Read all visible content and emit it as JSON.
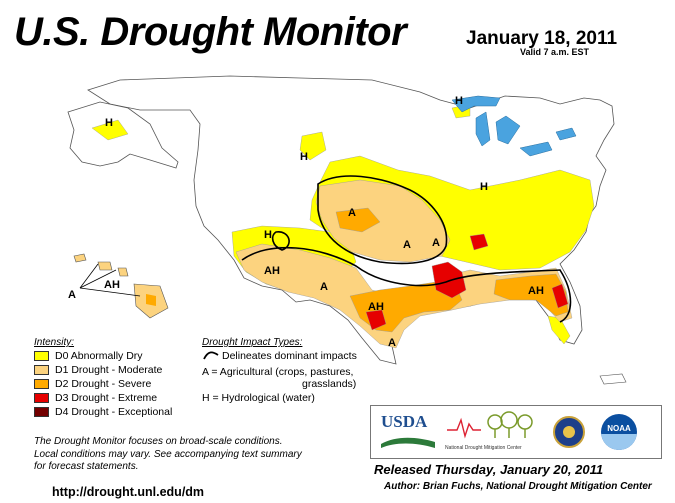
{
  "header": {
    "title": "U.S. Drought Monitor",
    "date": "January 18, 2011",
    "valid": "Valid 7 a.m. EST"
  },
  "map_labels": [
    "H",
    "H",
    "H",
    "H",
    "H",
    "A",
    "A",
    "A",
    "A",
    "A",
    "AH",
    "AH",
    "AH",
    "AH",
    "A",
    "AH"
  ],
  "legend": {
    "intensity_heading": "Intensity:",
    "items": [
      {
        "label": "D0 Abnormally Dry",
        "color": "#ffff00"
      },
      {
        "label": "D1 Drought - Moderate",
        "color": "#fcd37f"
      },
      {
        "label": "D2 Drought - Severe",
        "color": "#ffaa00"
      },
      {
        "label": "D3 Drought - Extreme",
        "color": "#e60000"
      },
      {
        "label": "D4 Drought - Exceptional",
        "color": "#730000"
      }
    ],
    "impact_heading": "Drought Impact Types:",
    "impact_line": "Delineates dominant impacts",
    "impact_a_1": "A = Agricultural (crops, pastures,",
    "impact_a_2": "grasslands)",
    "impact_h": "H = Hydrological (water)"
  },
  "note": {
    "line1": "The Drought Monitor focuses on broad-scale conditions.",
    "line2": "Local conditions may vary. See accompanying text summary",
    "line3": "for forecast statements."
  },
  "url": "http://drought.unl.edu/dm",
  "logos": {
    "usda": "USDA",
    "ndmc": "National Drought Mitigation Center",
    "noaa": "NOAA"
  },
  "footer": {
    "released": "Released Thursday, January 20, 2011",
    "author": "Author: Brian Fuchs, National Drought Mitigation Center"
  },
  "colors": {
    "water": "#4aa3df",
    "land": "#ffffff",
    "d0": "#ffff00",
    "d1": "#fcd37f",
    "d2": "#ffaa00",
    "d3": "#e60000",
    "d4": "#730000"
  }
}
